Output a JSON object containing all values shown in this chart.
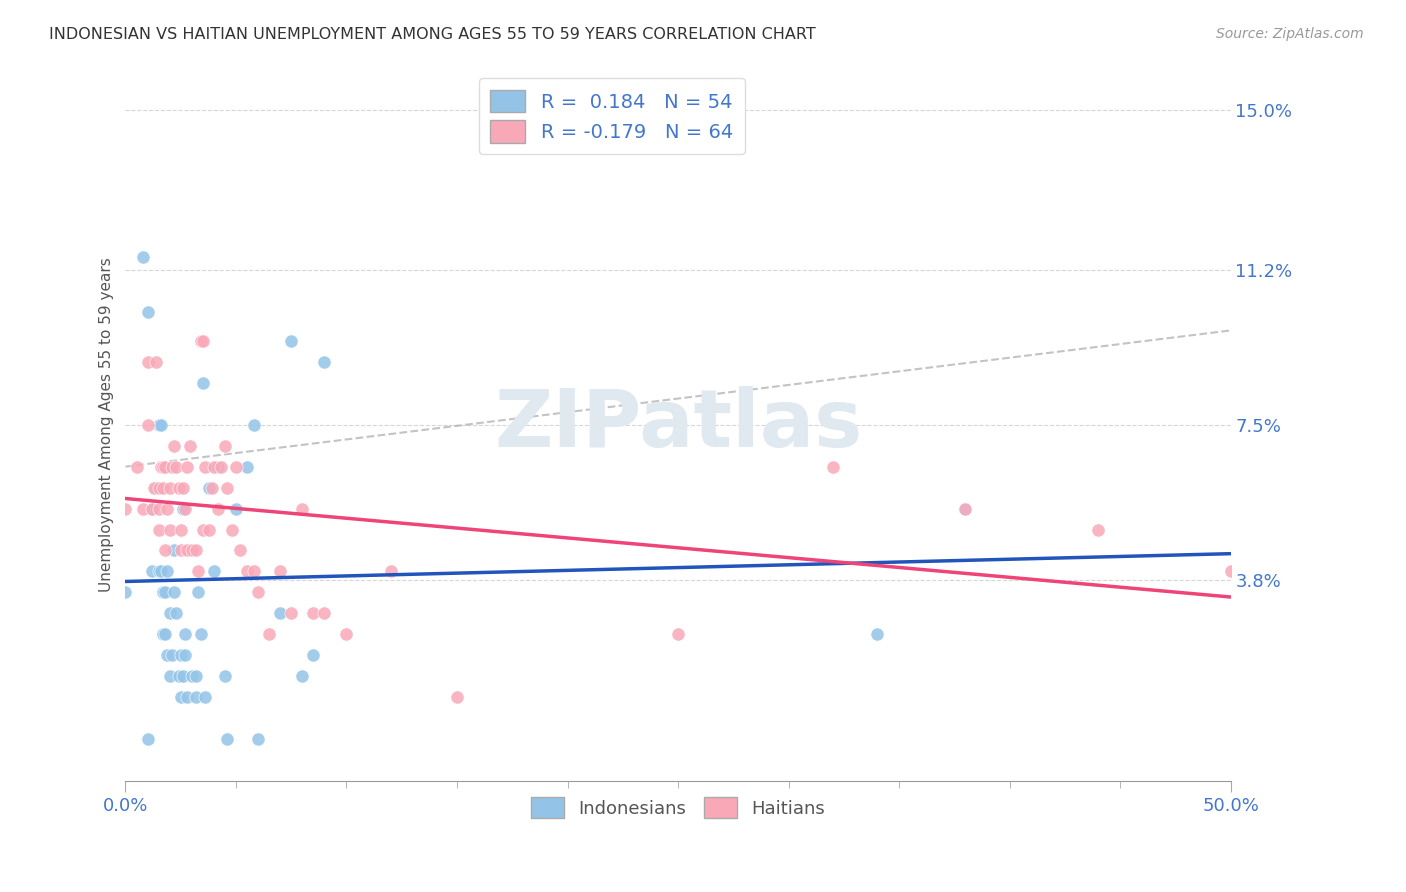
{
  "title": "INDONESIAN VS HAITIAN UNEMPLOYMENT AMONG AGES 55 TO 59 YEARS CORRELATION CHART",
  "source_text": "Source: ZipAtlas.com",
  "ylabel": "Unemployment Among Ages 55 to 59 years",
  "xlim": [
    0.0,
    50.0
  ],
  "ylim": [
    -1.0,
    16.0
  ],
  "yticks_right": [
    3.8,
    7.5,
    11.2,
    15.0
  ],
  "yticks_right_labels": [
    "3.8%",
    "7.5%",
    "11.2%",
    "15.0%"
  ],
  "indonesian_color": "#93c4e8",
  "haitian_color": "#f9a8b8",
  "indonesian_line_color": "#2255bb",
  "haitian_line_color": "#ee4477",
  "dashed_line_color": "#aaaaaa",
  "indonesian_R": 0.184,
  "indonesian_N": 54,
  "haitian_R": -0.179,
  "haitian_N": 64,
  "legend_label_indonesian": "Indonesians",
  "legend_label_haitian": "Haitians",
  "indonesian_x": [
    0.0,
    0.8,
    1.0,
    1.0,
    1.2,
    1.2,
    1.4,
    1.5,
    1.5,
    1.6,
    1.6,
    1.7,
    1.7,
    1.8,
    1.8,
    1.9,
    1.9,
    2.0,
    2.0,
    2.1,
    2.2,
    2.2,
    2.3,
    2.4,
    2.5,
    2.5,
    2.6,
    2.6,
    2.7,
    2.7,
    2.8,
    3.0,
    3.2,
    3.2,
    3.3,
    3.4,
    3.5,
    3.6,
    3.8,
    4.0,
    4.2,
    4.5,
    4.6,
    5.0,
    5.5,
    5.8,
    6.0,
    7.0,
    7.5,
    8.0,
    8.5,
    9.0,
    34.0,
    38.0
  ],
  "indonesian_y": [
    3.5,
    11.5,
    10.2,
    0.0,
    5.5,
    4.0,
    6.0,
    7.5,
    4.0,
    7.5,
    4.0,
    3.5,
    2.5,
    3.5,
    2.5,
    4.0,
    2.0,
    3.0,
    1.5,
    2.0,
    4.5,
    3.5,
    3.0,
    1.5,
    2.0,
    1.0,
    1.5,
    5.5,
    2.5,
    2.0,
    1.0,
    1.5,
    1.5,
    1.0,
    3.5,
    2.5,
    8.5,
    1.0,
    6.0,
    4.0,
    6.5,
    1.5,
    0.0,
    5.5,
    6.5,
    7.5,
    0.0,
    3.0,
    9.5,
    1.5,
    2.0,
    9.0,
    2.5,
    5.5
  ],
  "haitian_x": [
    0.0,
    0.5,
    0.8,
    1.0,
    1.0,
    1.2,
    1.3,
    1.4,
    1.5,
    1.5,
    1.5,
    1.6,
    1.7,
    1.7,
    1.8,
    1.8,
    1.9,
    2.0,
    2.0,
    2.1,
    2.2,
    2.3,
    2.4,
    2.5,
    2.5,
    2.6,
    2.7,
    2.8,
    2.8,
    2.9,
    3.0,
    3.2,
    3.3,
    3.4,
    3.5,
    3.5,
    3.6,
    3.8,
    3.9,
    4.0,
    4.2,
    4.3,
    4.5,
    4.6,
    4.8,
    5.0,
    5.2,
    5.5,
    5.8,
    6.0,
    6.5,
    7.0,
    7.5,
    8.0,
    8.5,
    9.0,
    10.0,
    12.0,
    15.0,
    25.0,
    32.0,
    38.0,
    44.0,
    50.0
  ],
  "haitian_y": [
    5.5,
    6.5,
    5.5,
    7.5,
    9.0,
    5.5,
    6.0,
    9.0,
    6.0,
    5.5,
    5.0,
    6.5,
    6.5,
    6.0,
    6.5,
    4.5,
    5.5,
    5.0,
    6.0,
    6.5,
    7.0,
    6.5,
    6.0,
    5.0,
    4.5,
    6.0,
    5.5,
    6.5,
    4.5,
    7.0,
    4.5,
    4.5,
    4.0,
    9.5,
    9.5,
    5.0,
    6.5,
    5.0,
    6.0,
    6.5,
    5.5,
    6.5,
    7.0,
    6.0,
    5.0,
    6.5,
    4.5,
    4.0,
    4.0,
    3.5,
    2.5,
    4.0,
    3.0,
    5.5,
    3.0,
    3.0,
    2.5,
    4.0,
    1.0,
    2.5,
    6.5,
    5.5,
    5.0,
    4.0
  ],
  "background_color": "#ffffff",
  "grid_color": "#cccccc",
  "title_color": "#333333",
  "axis_label_color": "#555555",
  "blue_color": "#4477cc",
  "watermark_color": "#e0e8f0"
}
